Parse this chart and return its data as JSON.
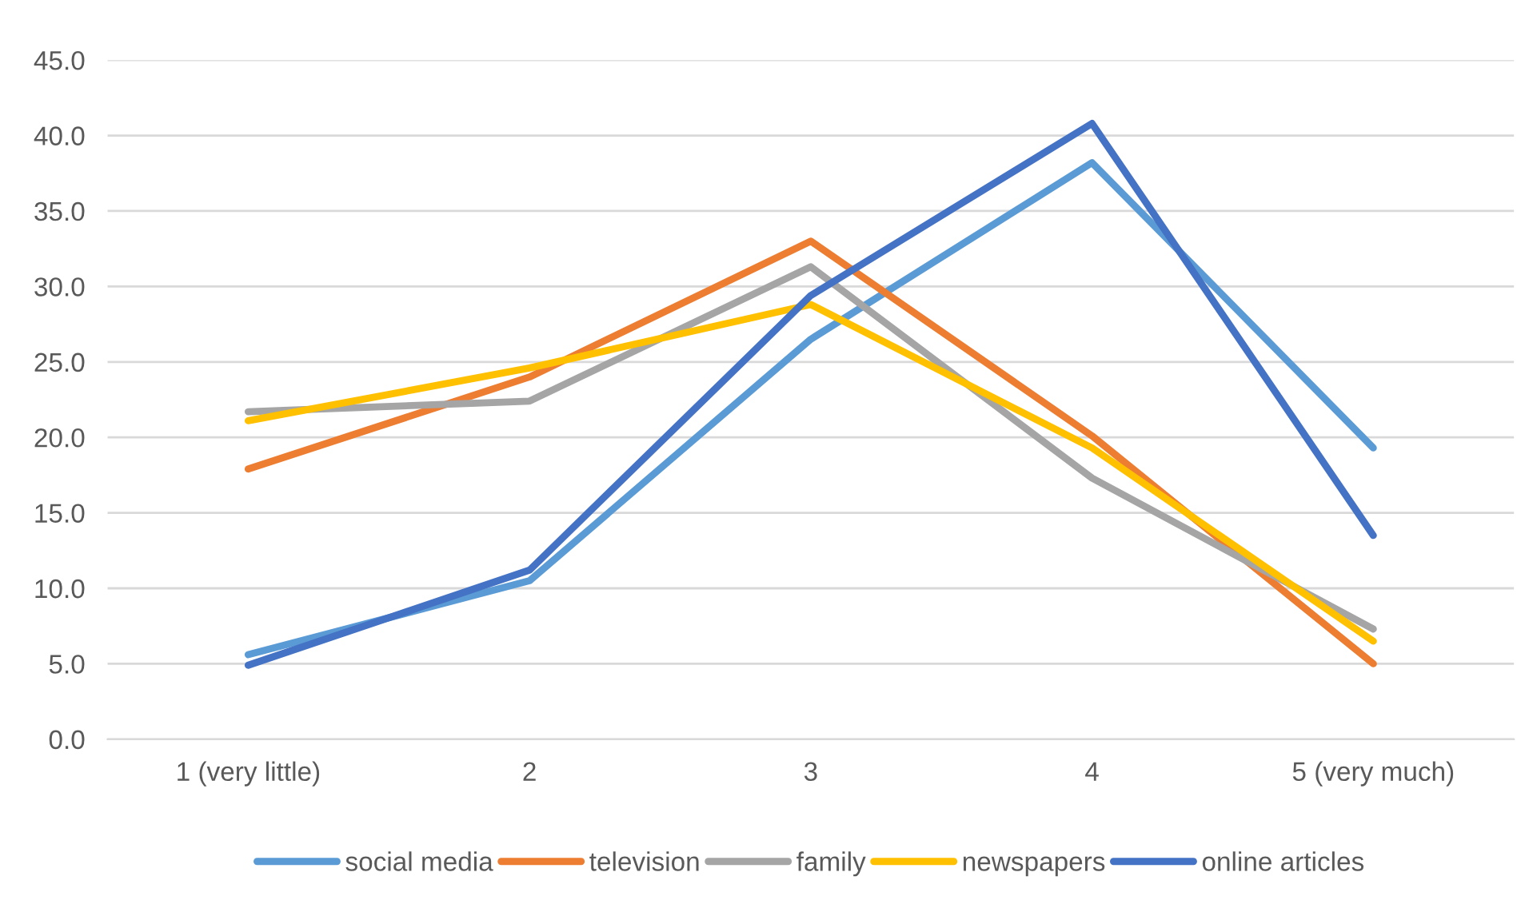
{
  "chart_data": {
    "type": "line",
    "categories": [
      "1 (very little)",
      "2",
      "3",
      "4",
      "5 (very much)"
    ],
    "series": [
      {
        "name": "social media",
        "color": "#5b9bd5",
        "values": [
          5.6,
          10.5,
          26.5,
          38.2,
          19.3
        ]
      },
      {
        "name": "television",
        "color": "#ed7d31",
        "values": [
          17.9,
          24.0,
          33.0,
          20.1,
          5.0
        ]
      },
      {
        "name": "family",
        "color": "#a5a5a5",
        "values": [
          21.7,
          22.4,
          31.3,
          17.3,
          7.3
        ]
      },
      {
        "name": "newspapers",
        "color": "#ffc000",
        "values": [
          21.1,
          24.6,
          28.8,
          19.3,
          6.5
        ]
      },
      {
        "name": "online articles",
        "color": "#4472c4",
        "values": [
          4.9,
          11.2,
          29.4,
          40.8,
          13.5
        ]
      }
    ],
    "ylim": [
      0,
      45
    ],
    "yticks": [
      {
        "value": 0,
        "label": "0.0"
      },
      {
        "value": 5,
        "label": "5.0"
      },
      {
        "value": 10,
        "label": "10.0"
      },
      {
        "value": 15,
        "label": "15.0"
      },
      {
        "value": 20,
        "label": "20.0"
      },
      {
        "value": 25,
        "label": "25.0"
      },
      {
        "value": 30,
        "label": "30.0"
      },
      {
        "value": 35,
        "label": "35.0"
      },
      {
        "value": 40,
        "label": "40.0"
      },
      {
        "value": 45,
        "label": "45.0"
      }
    ],
    "grid": "y",
    "legend": "bottom",
    "marker": "none",
    "line_style": "solid"
  }
}
